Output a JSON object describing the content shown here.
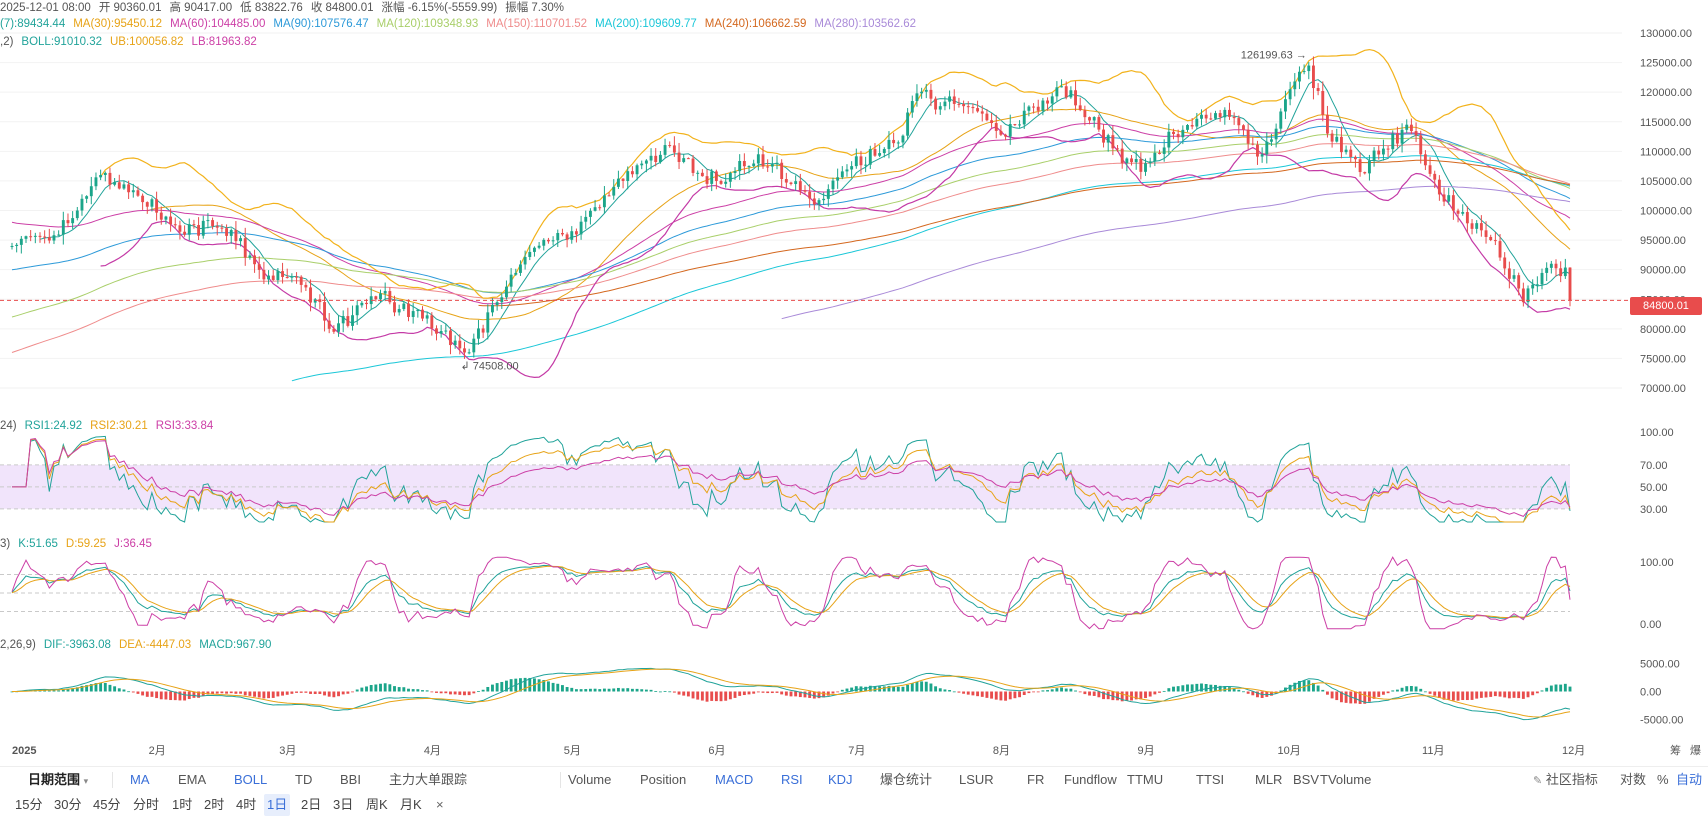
{
  "header": {
    "line1": [
      {
        "text": "2025-12-01 08:00",
        "color": "#555"
      },
      {
        "text": "开 90360.01",
        "color": "#555"
      },
      {
        "text": "高 90417.00",
        "color": "#555"
      },
      {
        "text": "低 83822.76",
        "color": "#555"
      },
      {
        "text": "收 84800.01",
        "color": "#555"
      },
      {
        "text": "涨幅 -6.15%(-5559.99)",
        "color": "#555"
      },
      {
        "text": "振幅 7.30%",
        "color": "#555"
      }
    ],
    "line2": [
      {
        "text": "(7):89434.44",
        "color": "#21a39a"
      },
      {
        "text": "MA(30):95450.12",
        "color": "#e7a317"
      },
      {
        "text": "MA(60):104485.00",
        "color": "#cc3fa6"
      },
      {
        "text": "MA(90):107576.47",
        "color": "#2d9ad9"
      },
      {
        "text": "MA(120):109348.93",
        "color": "#a9cf6a"
      },
      {
        "text": "MA(150):110701.52",
        "color": "#ef8c8c"
      },
      {
        "text": "MA(200):109609.77",
        "color": "#1bc7d8"
      },
      {
        "text": "MA(240):106662.59",
        "color": "#d4681f"
      },
      {
        "text": "MA(280):103562.62",
        "color": "#a98ad8"
      }
    ],
    "line3": [
      {
        "text": ",2)",
        "color": "#555"
      },
      {
        "text": "BOLL:91010.32",
        "color": "#21a39a"
      },
      {
        "text": "UB:100056.82",
        "color": "#e7a317"
      },
      {
        "text": "LB:81963.82",
        "color": "#cc3fa6"
      }
    ],
    "rsi": [
      {
        "text": "24)",
        "color": "#555"
      },
      {
        "text": "RSI1:24.92",
        "color": "#21a39a"
      },
      {
        "text": "RSI2:30.21",
        "color": "#e7a317"
      },
      {
        "text": "RSI3:33.84",
        "color": "#cc3fa6"
      }
    ],
    "kdj": [
      {
        "text": "3)",
        "color": "#555"
      },
      {
        "text": "K:51.65",
        "color": "#21a39a"
      },
      {
        "text": "D:59.25",
        "color": "#e7a317"
      },
      {
        "text": "J:36.45",
        "color": "#cc3fa6"
      }
    ],
    "macd": [
      {
        "text": "2,26,9)",
        "color": "#555"
      },
      {
        "text": "DIF:-3963.08",
        "color": "#21a39a"
      },
      {
        "text": "DEA:-4447.03",
        "color": "#e7a317"
      },
      {
        "text": "MACD:967.90",
        "color": "#21a39a"
      }
    ]
  },
  "price_axis": {
    "ticks": [
      "130000.00",
      "125000.00",
      "120000.00",
      "115000.00",
      "110000.00",
      "105000.00",
      "100000.00",
      "95000.00",
      "90000.00",
      "85000.00",
      "80000.00",
      "75000.00",
      "70000.00"
    ],
    "current_price": "84800.01",
    "high_annotation": "126199.63",
    "low_annotation": "74508.00"
  },
  "rsi_axis": {
    "ticks": [
      "100.00",
      "70.00",
      "50.00",
      "30.00"
    ]
  },
  "kdj_axis": {
    "ticks": [
      "100.00",
      "0.00"
    ]
  },
  "macd_axis": {
    "ticks": [
      "5000.00",
      "0.00",
      "-5000.00"
    ]
  },
  "x_axis": {
    "labels": [
      "2025",
      "2月",
      "3月",
      "4月",
      "5月",
      "6月",
      "7月",
      "8月",
      "9月",
      "10月",
      "11月",
      "12月"
    ]
  },
  "corner_labels": [
    "筹",
    "爆"
  ],
  "toolbar": {
    "range_label": "日期范围",
    "indicators_main": [
      "MA",
      "EMA",
      "BOLL",
      "TD",
      "BBI",
      "主力大单跟踪"
    ],
    "indicators_sub": [
      "Volume",
      "Position",
      "MACD",
      "RSI",
      "KDJ",
      "爆仓统计",
      "LSUR",
      "FR",
      "Fundflow",
      "TTMU",
      "TTSI",
      "MLR",
      "BSV",
      "TVolume"
    ],
    "community": "社区指标",
    "log_label": "对数",
    "percent_label": "%",
    "auto_label": "自动"
  },
  "timeframes": {
    "items": [
      "15分",
      "30分",
      "45分",
      "分时",
      "1时",
      "2时",
      "4时",
      "1日",
      "2日",
      "3日",
      "周K",
      "月K"
    ],
    "active": "1日",
    "close": "×"
  },
  "chart_data": {
    "type": "candlestick",
    "title": "",
    "x_labels": [
      "2025",
      "2月",
      "3月",
      "4月",
      "5月",
      "6月",
      "7月",
      "8月",
      "9月",
      "10月",
      "11月",
      "12月"
    ],
    "ylim": [
      70000,
      130000
    ],
    "anchors": [
      {
        "date": "2025-01-01",
        "close": 94000
      },
      {
        "date": "2025-01-08",
        "close": 95500
      },
      {
        "date": "2025-01-15",
        "close": 100000
      },
      {
        "date": "2025-01-20",
        "close": 106000
      },
      {
        "date": "2025-01-28",
        "close": 102500
      },
      {
        "date": "2025-02-05",
        "close": 97500
      },
      {
        "date": "2025-02-15",
        "close": 97000
      },
      {
        "date": "2025-02-25",
        "close": 89000
      },
      {
        "date": "2025-03-05",
        "close": 87000
      },
      {
        "date": "2025-03-10",
        "close": 80000
      },
      {
        "date": "2025-03-20",
        "close": 85000
      },
      {
        "date": "2025-03-28",
        "close": 83000
      },
      {
        "date": "2025-04-06",
        "close": 78000
      },
      {
        "date": "2025-04-08",
        "close": 76000
      },
      {
        "date": "2025-04-15",
        "close": 84500
      },
      {
        "date": "2025-04-22",
        "close": 93000
      },
      {
        "date": "2025-05-01",
        "close": 96500
      },
      {
        "date": "2025-05-10",
        "close": 104000
      },
      {
        "date": "2025-05-22",
        "close": 111000
      },
      {
        "date": "2025-05-30",
        "close": 104500
      },
      {
        "date": "2025-06-10",
        "close": 109500
      },
      {
        "date": "2025-06-22",
        "close": 101000
      },
      {
        "date": "2025-06-30",
        "close": 107500
      },
      {
        "date": "2025-07-10",
        "close": 111500
      },
      {
        "date": "2025-07-14",
        "close": 119800
      },
      {
        "date": "2025-07-25",
        "close": 117500
      },
      {
        "date": "2025-08-02",
        "close": 112500
      },
      {
        "date": "2025-08-14",
        "close": 121000
      },
      {
        "date": "2025-08-25",
        "close": 110500
      },
      {
        "date": "2025-09-01",
        "close": 108000
      },
      {
        "date": "2025-09-12",
        "close": 115500
      },
      {
        "date": "2025-09-18",
        "close": 117000
      },
      {
        "date": "2025-09-26",
        "close": 109500
      },
      {
        "date": "2025-10-02",
        "close": 120500
      },
      {
        "date": "2025-10-06",
        "close": 124500
      },
      {
        "date": "2025-10-10",
        "close": 113000
      },
      {
        "date": "2025-10-17",
        "close": 106500
      },
      {
        "date": "2025-10-27",
        "close": 114500
      },
      {
        "date": "2025-11-04",
        "close": 101500
      },
      {
        "date": "2025-11-14",
        "close": 95000
      },
      {
        "date": "2025-11-21",
        "close": 84500
      },
      {
        "date": "2025-11-27",
        "close": 91000
      },
      {
        "date": "2025-11-30",
        "close": 90360
      },
      {
        "date": "2025-12-01",
        "close": 84800
      }
    ],
    "last_candle": {
      "date": "2025-12-01",
      "open": 90360.01,
      "high": 90417.0,
      "low": 83822.76,
      "close": 84800.01
    },
    "annotations": [
      {
        "label": "126199.63",
        "value": 126199.63
      },
      {
        "label": "74508.00",
        "value": 74508.0
      }
    ]
  },
  "colors": {
    "up": "#1ba58a",
    "down": "#e84c4c",
    "rsi_band": "#f1e4fb"
  }
}
